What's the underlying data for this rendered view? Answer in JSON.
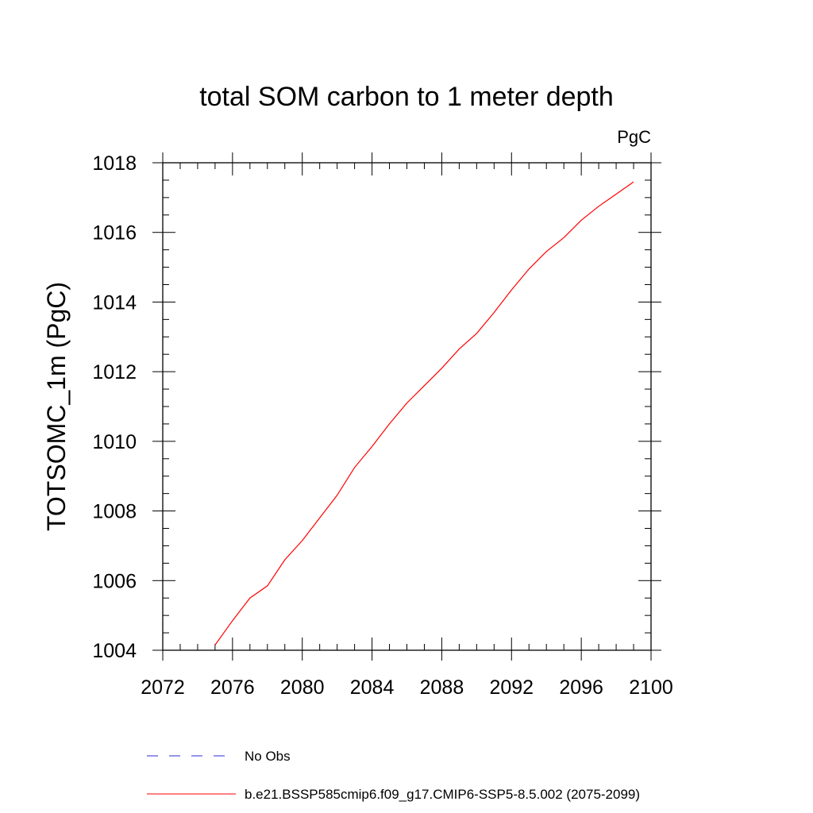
{
  "chart_data": {
    "type": "line",
    "title": "total SOM carbon to 1 meter depth",
    "units_label": "PgC",
    "xlabel": "",
    "ylabel": "TOTSOMC_1m  (PgC)",
    "xlim": [
      2072,
      2100
    ],
    "ylim": [
      1004,
      1018
    ],
    "x_ticks": [
      "2072",
      "2076",
      "2080",
      "2084",
      "2088",
      "2092",
      "2096",
      "2100"
    ],
    "y_ticks": [
      "1004",
      "1006",
      "1008",
      "1010",
      "1012",
      "1014",
      "1016",
      "1018"
    ],
    "grid": false,
    "legend_position": "bottom",
    "series": [
      {
        "name": "b.e21.BSSP585cmip6.f09_g17.CMIP6-SSP5-8.5.002 (2075-2099)",
        "color": "#ff0000",
        "style": "solid",
        "x": [
          2075,
          2076,
          2077,
          2078,
          2079,
          2080,
          2081,
          2082,
          2083,
          2084,
          2085,
          2086,
          2087,
          2088,
          2089,
          2090,
          2091,
          2092,
          2093,
          2094,
          2095,
          2096,
          2097,
          2098,
          2099
        ],
        "y": [
          1004.15,
          1004.85,
          1005.5,
          1005.85,
          1006.6,
          1007.15,
          1007.8,
          1008.45,
          1009.25,
          1009.85,
          1010.5,
          1011.1,
          1011.6,
          1012.1,
          1012.65,
          1013.1,
          1013.7,
          1014.35,
          1014.95,
          1015.45,
          1015.85,
          1016.35,
          1016.75,
          1017.1,
          1017.45
        ]
      }
    ],
    "legend": [
      {
        "label": "No Obs",
        "color": "#2b2bd6",
        "style": "dashed"
      },
      {
        "label": "b.e21.BSSP585cmip6.f09_g17.CMIP6-SSP5-8.5.002 (2075-2099)",
        "color": "#ff0000",
        "style": "solid"
      }
    ]
  }
}
